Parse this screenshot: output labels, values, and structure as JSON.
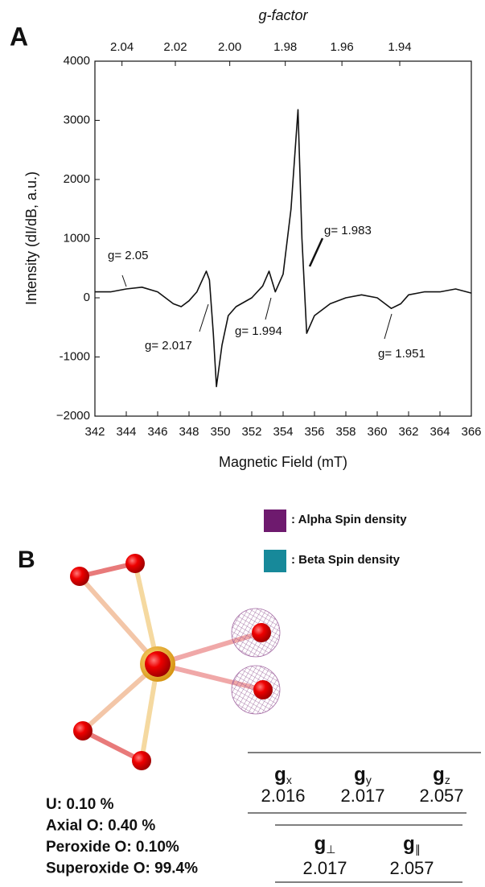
{
  "panel_labels": [
    "A",
    "B"
  ],
  "chart_data": {
    "type": "line",
    "xlabel": "Magnetic Field (mT)",
    "ylabel": "Intensity (dI/dB, a.u.)",
    "x2label": "g-factor",
    "x": [
      342,
      343,
      344,
      345,
      346,
      347,
      347.5,
      348,
      348.5,
      349.1,
      349.3,
      349.55,
      349.75,
      350.1,
      350.5,
      351,
      352,
      352.7,
      353.1,
      353.5,
      354,
      354.5,
      354.95,
      355.2,
      355.5,
      356,
      357,
      358,
      359,
      360,
      360.9,
      361.5,
      362,
      363,
      364,
      365,
      366
    ],
    "values": [
      100,
      100,
      150,
      180,
      100,
      -100,
      -150,
      -50,
      100,
      450,
      300,
      -600,
      -1500,
      -800,
      -300,
      -150,
      0,
      200,
      450,
      100,
      400,
      1500,
      3180,
      1000,
      -600,
      -300,
      -100,
      0,
      50,
      0,
      -180,
      -100,
      50,
      100,
      100,
      150,
      80
    ],
    "color": "#111111",
    "xlim": [
      342,
      366
    ],
    "xticks": [
      342,
      344,
      346,
      348,
      350,
      352,
      354,
      356,
      358,
      360,
      362,
      364,
      366
    ],
    "ylim": [
      -2000,
      4000
    ],
    "yticks": [
      {
        "value": -2000,
        "label": "−2000"
      },
      -1000,
      0,
      1000,
      2000,
      3000,
      4000
    ],
    "x2lim": [
      2.0503,
      1.9158
    ],
    "x2scale": "reciprocal",
    "x2ticks": [
      2.04,
      2.02,
      {
        "value": 2,
        "label": "2.00"
      },
      1.98,
      1.96,
      1.94
    ],
    "grid": false,
    "annotations": [
      "g= 2.05",
      "g= 2.017",
      "g= 1.994",
      "g= 1.983",
      "g= 1.951"
    ]
  },
  "legend": [
    {
      "label": ": Alpha Spin density",
      "color": "#6e1a6e"
    },
    {
      "label": ": Beta Spin density",
      "color": "#17899a"
    }
  ],
  "composition": [
    "U: 0.10 %",
    "Axial O: 0.40 %",
    "Peroxide O: 0.10%",
    "Superoxide O: 99.4%"
  ],
  "g_table_1": {
    "headers": [
      {
        "symbol": "g",
        "sub": "x"
      },
      {
        "symbol": "g",
        "sub": "y"
      },
      {
        "symbol": "g",
        "sub": "z"
      }
    ],
    "values": [
      "2.016",
      "2.017",
      "2.057"
    ]
  },
  "g_table_2": {
    "headers": [
      {
        "symbol": "g",
        "sub": "⊥"
      },
      {
        "symbol": "g",
        "sub": "∥"
      }
    ],
    "values": [
      "2.017",
      "2.057"
    ]
  }
}
